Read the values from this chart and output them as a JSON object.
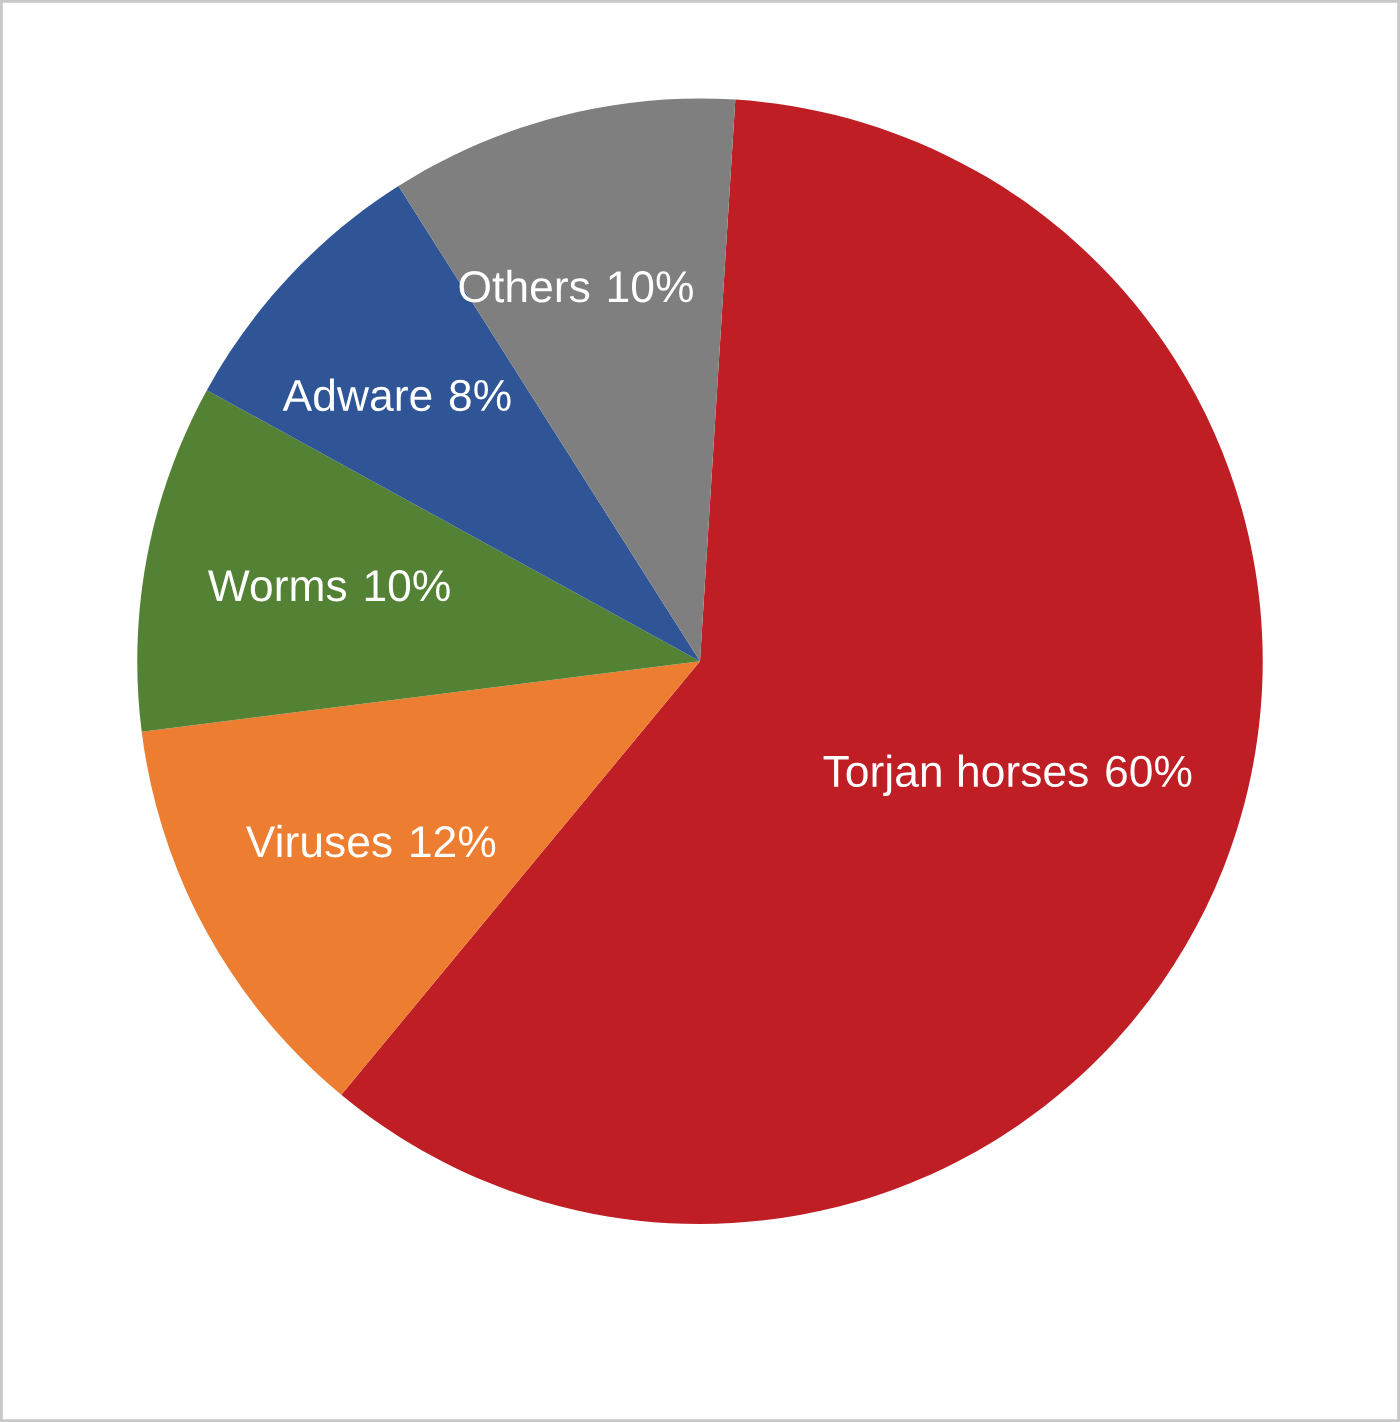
{
  "chart_data": {
    "type": "pie",
    "categories": [
      "Torjan horses",
      "Viruses",
      "Worms",
      "Adware",
      "Others"
    ],
    "values": [
      60,
      12,
      10,
      8,
      10
    ],
    "colors": [
      "#be1e24",
      "#ed7d31",
      "#548235",
      "#2f5597",
      "#7f7f7f"
    ],
    "value_labels": [
      "60%",
      "12%",
      "10%",
      "8%",
      "10%"
    ],
    "legend": false
  }
}
